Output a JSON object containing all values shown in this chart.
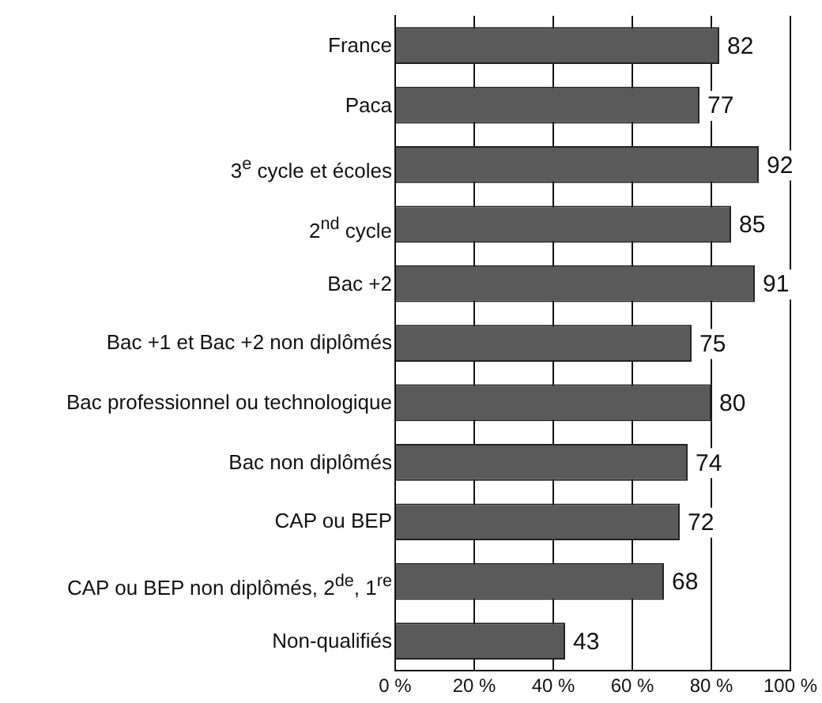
{
  "chart_data": {
    "type": "bar",
    "orientation": "horizontal",
    "categories": [
      "France",
      "Paca",
      "3$^{e}$ cycle et écoles",
      "2$^{nd}$ cycle",
      "Bac +2",
      "Bac +1 et Bac +2 non diplômés",
      "Bac professionnel ou technologique",
      "Bac non diplômés",
      "CAP ou BEP",
      "CAP ou BEP non diplômés, 2$^{de}$, 1$^{re}$",
      "Non-qualifiés"
    ],
    "values": [
      82,
      77,
      92,
      85,
      91,
      75,
      80,
      74,
      72,
      68,
      43
    ],
    "color": "#5a5a5a",
    "xlim": [
      0,
      100
    ],
    "xticks": [
      {
        "value": 0,
        "label": "0 %"
      },
      {
        "value": 20,
        "label": "20 %"
      },
      {
        "value": 40,
        "label": "40 %"
      },
      {
        "value": 60,
        "label": "60 %"
      },
      {
        "value": 80,
        "label": "80 %"
      },
      {
        "value": 100,
        "label": "100 %"
      }
    ],
    "grid": "x",
    "data_labels": true,
    "legend": false
  }
}
